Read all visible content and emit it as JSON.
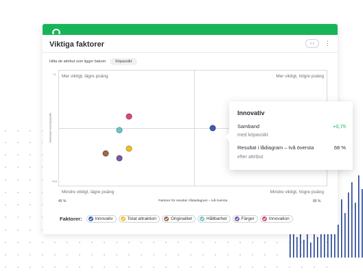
{
  "app": {
    "brand_color": "#17b557"
  },
  "card": {
    "title": "Viktiga faktorer",
    "filter_label": "Hitta de attribut som ligger bakom",
    "filter_chip": "Köpavsikt"
  },
  "chart_data": {
    "type": "scatter",
    "ylabel": "Samband med köpavsikt",
    "xlabel": "Faktorer för resultat i lådadiagram – två översta",
    "xlim": [
      45,
      85
    ],
    "x_tick_left": "45 %",
    "x_tick_right": "85 %",
    "y_tick_top": "+1",
    "y_tick_bottom": "+0,5",
    "ylim": [
      0.5,
      1
    ],
    "quadrants": {
      "top_left": "Mer viktigt, lägre poäng",
      "top_right": "Mer viktigt, högre poäng",
      "bottom_left": "Mindre viktigt, lägre poäng",
      "bottom_right": "Mindre viktigt, högre poäng"
    },
    "series": [
      {
        "name": "Innovativ",
        "color": "#3a5fb0",
        "x": 68,
        "y": 0.75
      },
      {
        "name": "Total attraktion",
        "color": "#f2bf2a",
        "x": 55.5,
        "y": 0.66
      },
      {
        "name": "Originalitet",
        "color": "#9b6a4c",
        "x": 52,
        "y": 0.64
      },
      {
        "name": "Hållbarhet",
        "color": "#6ec7c9",
        "x": 54,
        "y": 0.74
      },
      {
        "name": "Färger",
        "color": "#7b5aa6",
        "x": 54,
        "y": 0.62
      },
      {
        "name": "Innovation",
        "color": "#d9487a",
        "x": 55.5,
        "y": 0.8
      }
    ]
  },
  "legend": {
    "title": "Faktorer:"
  },
  "tooltip": {
    "title": "Innovativ",
    "row1_label": "Samband",
    "row1_value": "+0,75",
    "row1_sub": "med köpavsikt",
    "row2_label": "Resultat i lådiagram – två översta",
    "row2_value": "68 %",
    "row2_sub": "efter attribut"
  }
}
